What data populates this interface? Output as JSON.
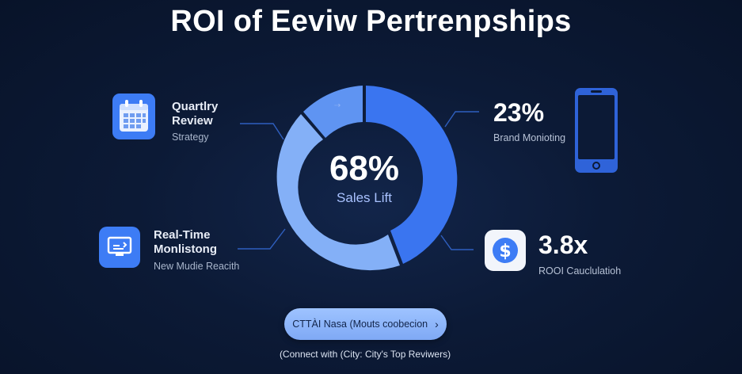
{
  "title": "ROI of Eeviw Pertrenpships",
  "center": {
    "value": "68%",
    "label": "Sales Lift"
  },
  "left_items": [
    {
      "title_line1": "Quartlry",
      "title_line2": "Review",
      "subtitle": "Strategy",
      "icon": "calendar-icon"
    },
    {
      "title_line1": "Real-Time",
      "title_line2": "Monlistong",
      "subtitle": "New Mudie Reacith",
      "icon": "monitor-icon"
    }
  ],
  "right_items": [
    {
      "value": "23%",
      "label": "Brand Monioting",
      "icon": "smartphone-icon"
    },
    {
      "value": "3.8x",
      "label": "ROOI Cauclulatioh",
      "icon": "dollar-icon"
    }
  ],
  "cta": {
    "label": "CTTÀI Nasa (Mouts coobecion",
    "chevron": "›"
  },
  "footer": "(Connect with (City: City's Top Reviwers)",
  "colors": {
    "background": "#0c1a36",
    "ring_dark": "#3a75f0",
    "ring_light": "#84b0f7",
    "accent_blue": "#3d7cf5",
    "cta": "#9ec3ff"
  }
}
